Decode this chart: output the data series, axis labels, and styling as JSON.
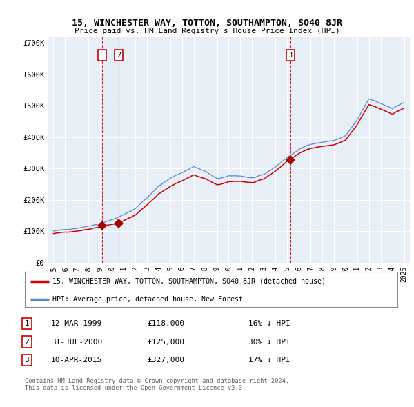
{
  "title": "15, WINCHESTER WAY, TOTTON, SOUTHAMPTON, SO40 8JR",
  "subtitle": "Price paid vs. HM Land Registry's House Price Index (HPI)",
  "ylim": [
    0,
    700000
  ],
  "xlim_start": 1994.5,
  "xlim_end": 2025.5,
  "sale_dates": [
    1999.19,
    2000.58,
    2015.27
  ],
  "sale_prices": [
    118000,
    125000,
    327000
  ],
  "sale_labels": [
    "1",
    "2",
    "3"
  ],
  "hpi_line_color": "#5588cc",
  "price_line_color": "#cc0000",
  "sale_dot_color": "#aa0000",
  "vline_color": "#cc0000",
  "box_color": "#cc0000",
  "shade_color": "#ddeeff",
  "legend_label_price": "15, WINCHESTER WAY, TOTTON, SOUTHAMPTON, SO40 8JR (detached house)",
  "legend_label_hpi": "HPI: Average price, detached house, New Forest",
  "table_rows": [
    [
      "1",
      "12-MAR-1999",
      "£118,000",
      "16% ↓ HPI"
    ],
    [
      "2",
      "31-JUL-2000",
      "£125,000",
      "30% ↓ HPI"
    ],
    [
      "3",
      "10-APR-2015",
      "£327,000",
      "17% ↓ HPI"
    ]
  ],
  "footnote": "Contains HM Land Registry data © Crown copyright and database right 2024.\nThis data is licensed under the Open Government Licence v3.0.",
  "background_color": "#e8eef5"
}
